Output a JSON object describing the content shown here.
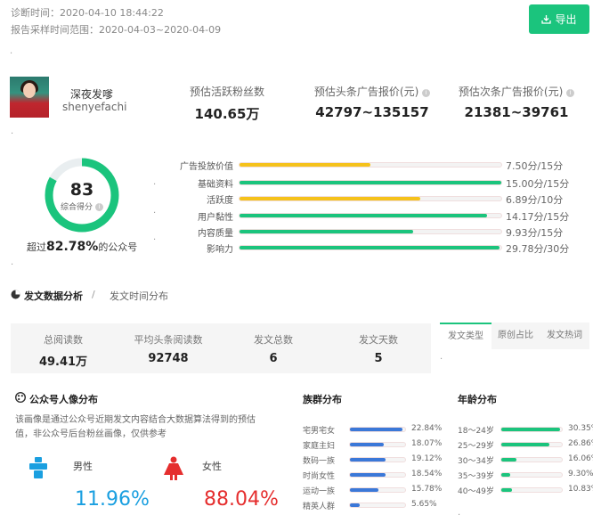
{
  "header": {
    "diagnosis_time": "诊断时间：2020-04-10 18:44:22",
    "report_range": "报告采样时间范围：2020-04-03~2020-04-09",
    "export_label": "导出"
  },
  "account": {
    "name": "深夜发嗲",
    "id": "shenyefachi"
  },
  "stats": [
    {
      "label": "预估活跃粉丝数",
      "value": "140.65万",
      "info": false
    },
    {
      "label": "预估头条广告报价(元)",
      "value": "42797~135157",
      "info": true
    },
    {
      "label": "预估次条广告报价(元)",
      "value": "21381~39761",
      "info": true
    }
  ],
  "score": {
    "value": "83",
    "label": "综合得分",
    "ratio": 0.83,
    "beat_prefix": "超过",
    "beat_value": "82.78%",
    "beat_suffix": "的公众号"
  },
  "score_bars": [
    {
      "label": "广告投放价值",
      "value": "7.50分/15分",
      "ratio": 0.5,
      "color": "#f5c21b"
    },
    {
      "label": "基础资料",
      "value": "15.00分/15分",
      "ratio": 1.0,
      "color": "#1bc47d"
    },
    {
      "label": "活跃度",
      "value": "6.89分/10分",
      "ratio": 0.689,
      "color": "#f5c21b"
    },
    {
      "label": "用户黏性",
      "value": "14.17分/15分",
      "ratio": 0.945,
      "color": "#1bc47d"
    },
    {
      "label": "内容质量",
      "value": "9.93分/15分",
      "ratio": 0.662,
      "color": "#1bc47d"
    },
    {
      "label": "影响力",
      "value": "29.78分/30分",
      "ratio": 0.993,
      "color": "#1bc47d"
    }
  ],
  "section_tabs": {
    "analysis": "发文数据分析",
    "separator": "/",
    "time_dist": "发文时间分布"
  },
  "post_stats": [
    {
      "label": "总阅读数",
      "value": "49.41万"
    },
    {
      "label": "平均头条阅读数",
      "value": "92748"
    },
    {
      "label": "发文总数",
      "value": "6"
    },
    {
      "label": "发文天数",
      "value": "5"
    }
  ],
  "post_tabs": [
    "发文类型",
    "原创占比",
    "发文热词"
  ],
  "persona": {
    "title": "公众号人像分布",
    "desc_line1": "该画像是通过公众号近期发文内容结合大数据算法得到的预估",
    "desc_line2": "值，非公众号后台粉丝画像，仅供参考",
    "male_label": "男性",
    "male_value": "11.96%",
    "female_label": "女性",
    "female_value": "88.04%",
    "male_color": "#1a9fe0",
    "female_color": "#e52e2e"
  },
  "groups": {
    "title": "族群分布",
    "items": [
      {
        "label": "宅男宅女",
        "value": "22.84%",
        "ratio": 0.95
      },
      {
        "label": "家庭主妇",
        "value": "18.07%",
        "ratio": 0.62
      },
      {
        "label": "数码一族",
        "value": "19.12%",
        "ratio": 0.65
      },
      {
        "label": "时尚女性",
        "value": "18.54%",
        "ratio": 0.64
      },
      {
        "label": "运动一族",
        "value": "15.78%",
        "ratio": 0.52
      },
      {
        "label": "精英人群",
        "value": "5.65%",
        "ratio": 0.18
      }
    ]
  },
  "age": {
    "title": "年龄分布",
    "items": [
      {
        "label": "18～24岁",
        "value": "30.35%",
        "ratio": 0.97
      },
      {
        "label": "25～29岁",
        "value": "26.86%",
        "ratio": 0.79
      },
      {
        "label": "30～34岁",
        "value": "16.06%",
        "ratio": 0.25
      },
      {
        "label": "35～39岁",
        "value": "9.30%",
        "ratio": 0.15
      },
      {
        "label": "40～49岁",
        "value": "10.83%",
        "ratio": 0.17
      }
    ]
  }
}
